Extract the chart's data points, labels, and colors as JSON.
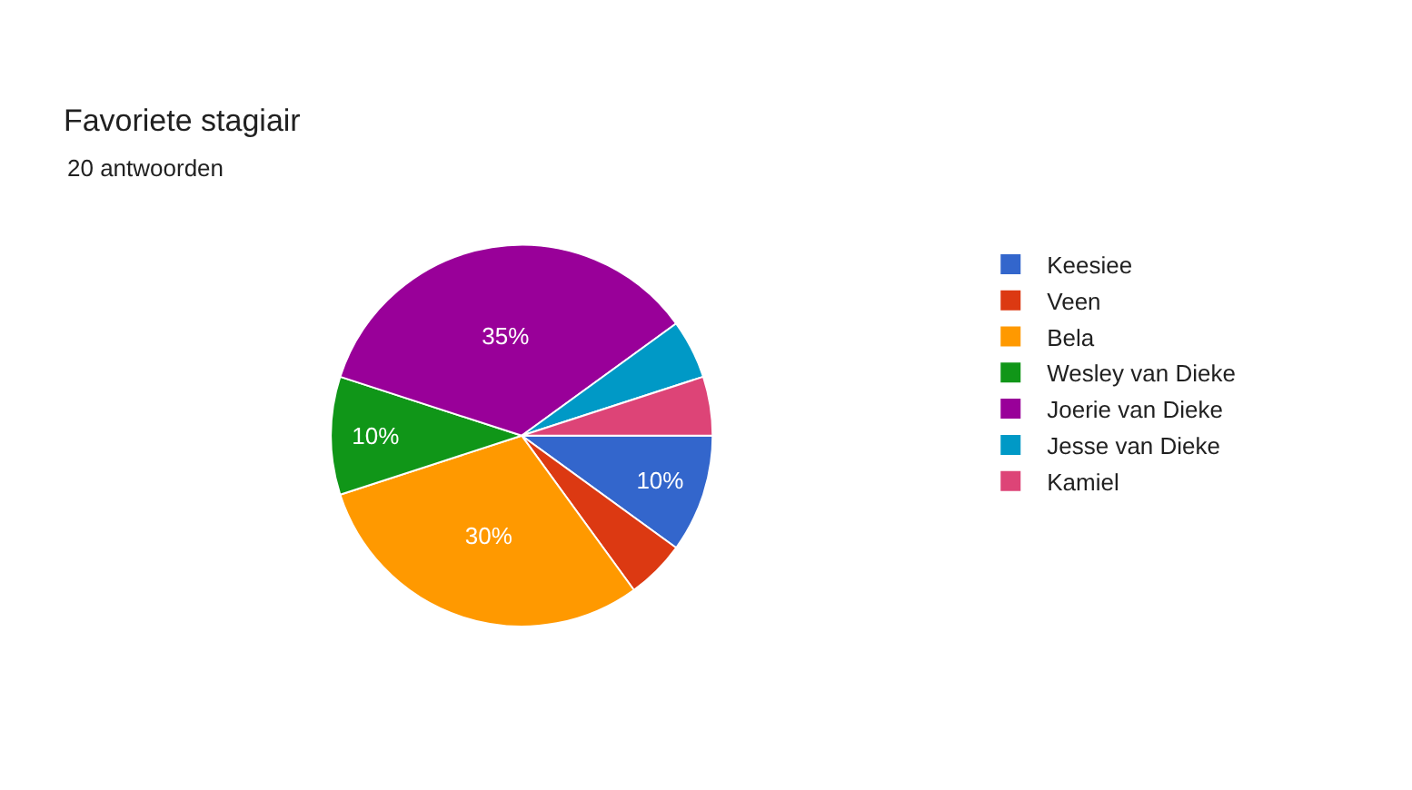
{
  "chart_data": {
    "type": "pie",
    "title": "Favoriete stagiair",
    "subtitle": "20 antwoorden",
    "categories": [
      "Keesiee",
      "Veen",
      "Bela",
      "Wesley van Dieke",
      "Joerie van Dieke",
      "Jesse van Dieke",
      "Kamiel"
    ],
    "values": [
      10,
      5,
      30,
      10,
      35,
      5,
      5
    ],
    "colors": [
      "#3366cc",
      "#dc3912",
      "#ff9900",
      "#109618",
      "#990099",
      "#0099c6",
      "#dd4477"
    ],
    "value_labels": [
      "10%",
      null,
      "30%",
      "10%",
      "35%",
      null,
      null
    ],
    "legend": "right"
  }
}
